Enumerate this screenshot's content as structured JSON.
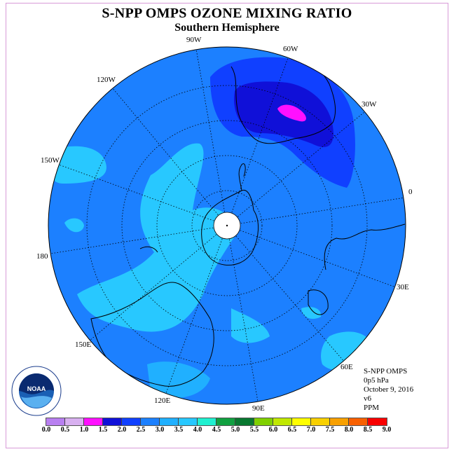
{
  "title": "S-NPP OMPS OZONE MIXING RATIO",
  "subtitle": "Southern Hemisphere",
  "longitude_labels": [
    "90W",
    "60W",
    "30W",
    "0",
    "30E",
    "60E",
    "90E",
    "120E",
    "150E",
    "180",
    "150W",
    "120W"
  ],
  "info": {
    "instrument": "S-NPP OMPS",
    "level": "0p5 hPa",
    "date": "October 9, 2016",
    "version": "v6",
    "units": "PPM"
  },
  "colorbar": {
    "ticks": [
      "0.0",
      "0.5",
      "1.0",
      "1.5",
      "2.0",
      "2.5",
      "3.0",
      "3.5",
      "4.0",
      "4.5",
      "5.0",
      "5.5",
      "6.0",
      "6.5",
      "7.0",
      "7.5",
      "8.0",
      "8.5",
      "9.0"
    ],
    "colors": [
      "#b87ff0",
      "#d8b0f0",
      "#ff10ff",
      "#1010d8",
      "#1040ff",
      "#1c80ff",
      "#20b0ff",
      "#28c8ff",
      "#20f0d0",
      "#10a040",
      "#087830",
      "#80d000",
      "#c0e800",
      "#ffff00",
      "#f8d000",
      "#f8a000",
      "#f86000",
      "#f80000",
      "#a06030"
    ]
  },
  "logo_text": "NOAA",
  "colors": {
    "background_field": "#1c80ff",
    "low_field": "#1040ff",
    "min_field": "#1010d8",
    "core": "#ff10ff",
    "high_field": "#28c8ff",
    "frame": "#d89ad8"
  }
}
